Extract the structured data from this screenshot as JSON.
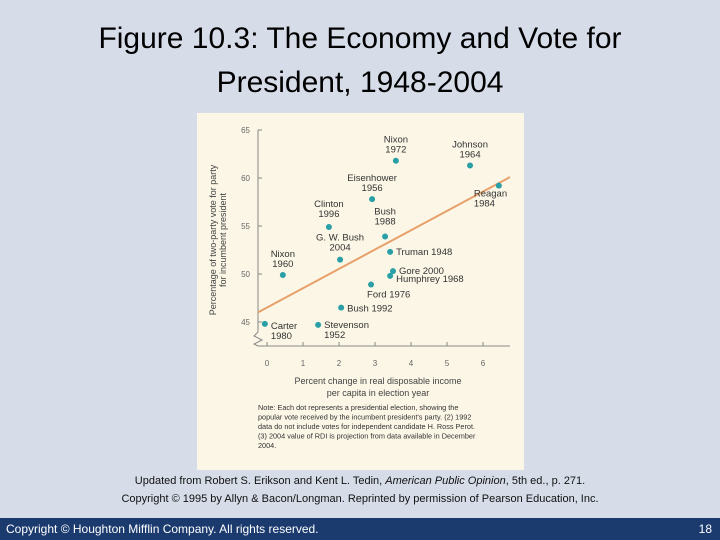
{
  "title": [
    "Figure 10.3: The Economy and Vote for",
    "President, 1948-2004"
  ],
  "chart_data": {
    "type": "scatter",
    "y_label": [
      "Percentage of two-party vote for party",
      "for incumbent president"
    ],
    "x_label": [
      "Percent change in real disposable income",
      "per capita in election year"
    ],
    "x": [
      3.58,
      5.64,
      6.44,
      2.92,
      1.72,
      3.28,
      2.03,
      3.42,
      3.5,
      0.44,
      3.42,
      2.89,
      2.06,
      -0.06,
      1.42
    ],
    "y": [
      61.8,
      61.3,
      59.2,
      57.8,
      54.9,
      53.9,
      51.5,
      52.3,
      50.3,
      49.9,
      49.8,
      48.9,
      46.5,
      44.8,
      44.7
    ],
    "labels": [
      [
        "Nixon",
        "1972"
      ],
      [
        "Johnson",
        "1964"
      ],
      [
        "Reagan",
        "1984"
      ],
      [
        "Eisenhower",
        "1956"
      ],
      [
        "Clinton",
        "1996"
      ],
      [
        "Bush",
        "1988"
      ],
      [
        "G. W. Bush",
        "2004"
      ],
      [
        "Truman 1948"
      ],
      [
        "Gore 2000"
      ],
      [
        "Nixon",
        "1960"
      ],
      [
        "Humphrey 1968"
      ],
      [
        "Ford 1976"
      ],
      [
        "Bush 1992"
      ],
      [
        "Carter",
        "1980"
      ],
      [
        "Stevenson",
        "1952"
      ]
    ],
    "color": "#2a9fa5",
    "trend_line": {
      "x": [
        -0.25,
        6.75
      ],
      "y": [
        46.0,
        60.1
      ],
      "color": "#e8a06a"
    },
    "xlim": [
      -0.25,
      6.75
    ],
    "xticks": [
      0,
      1,
      2,
      3,
      4,
      5,
      6
    ],
    "ylim": [
      42.5,
      65
    ],
    "yticks": [
      45,
      50,
      55,
      60,
      65
    ],
    "note": [
      "Note: Each dot represents a presidential election, showing the",
      "popular vote received by the incumbent president's party. (2) 1992",
      "data do not include votes for independent candidate H. Ross Perot.",
      "(3) 2004 value of RDI is projection from data available in December",
      "2004."
    ]
  },
  "caption": {
    "line1": [
      "Updated from Robert S. Erikson and Kent L. Tedin, ",
      "American Public Opinion",
      ", 5th ed., p. 271."
    ],
    "line2": "Copyright © 1995 by Allyn & Bacon/Longman. Reprinted by permission of Pearson Education, Inc."
  },
  "footer": {
    "copyright": "Copyright © Houghton Mifflin Company. All rights reserved.",
    "page": "18"
  }
}
